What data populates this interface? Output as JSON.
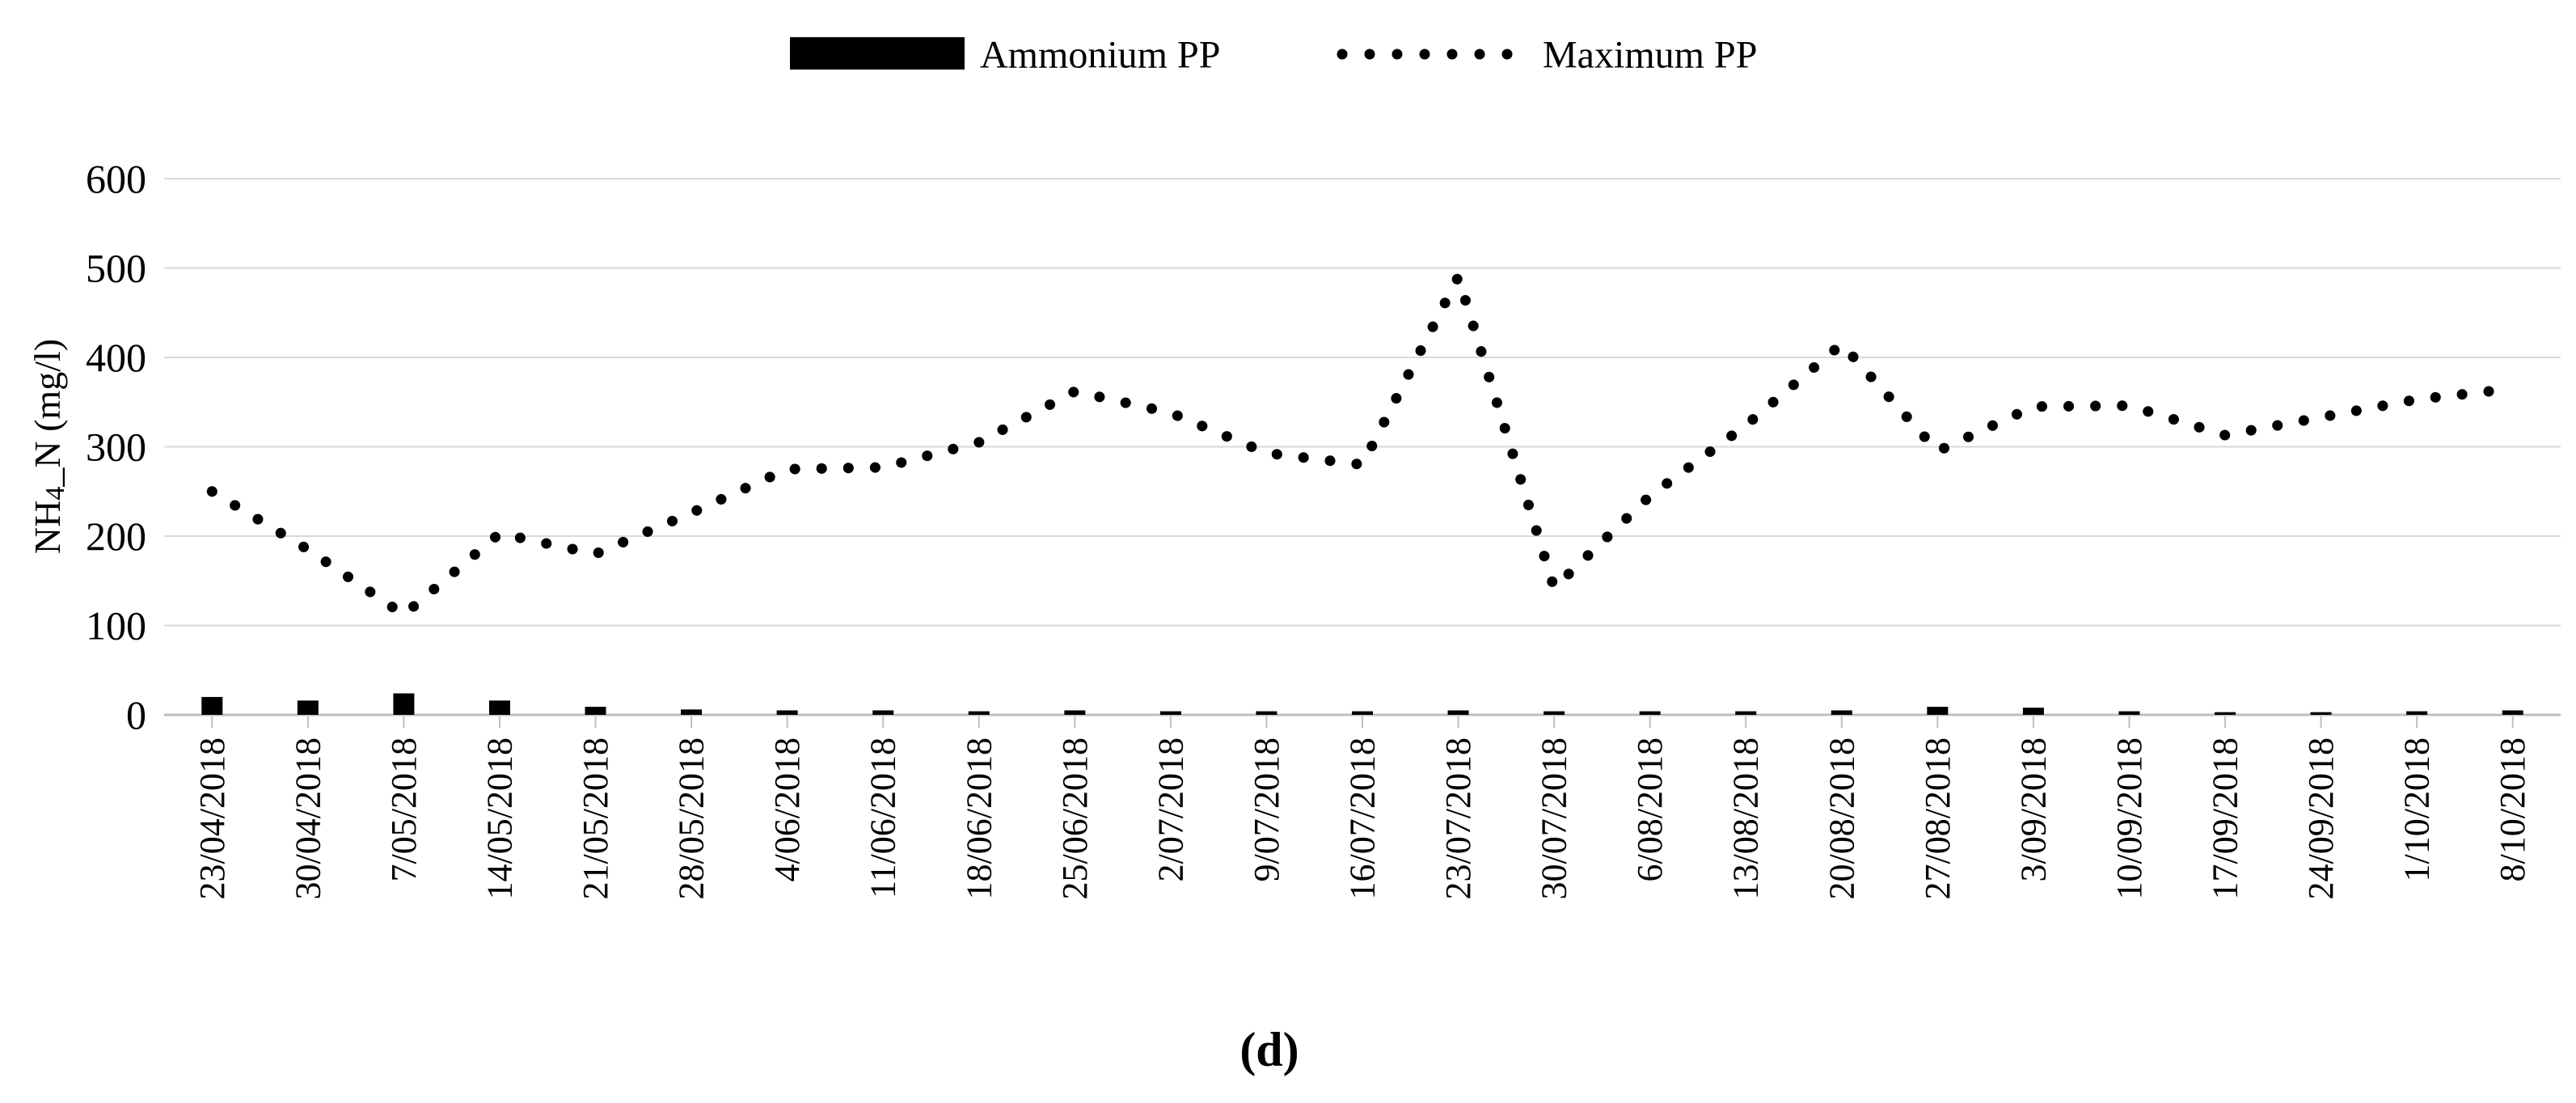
{
  "figure": {
    "caption": "(d)"
  },
  "y_axis": {
    "label_prefix": "NH",
    "label_sub": "4",
    "label_suffix": "_N (mg/l)",
    "ticks": [
      "0",
      "100",
      "200",
      "300",
      "400",
      "500",
      "600"
    ]
  },
  "legend": {
    "items": [
      {
        "label": "Ammonium PP",
        "marker": "filled-black-bar-swatch"
      },
      {
        "label": "Maximum PP",
        "marker": "black-round-dotted-line-swatch"
      }
    ]
  },
  "chart_data": {
    "type": "combo",
    "title": "",
    "xlabel": "",
    "ylabel": "NH4_N (mg/l)",
    "ylim": [
      0,
      600
    ],
    "ytick_step": 100,
    "grid": "horizontal",
    "gridline_color": "#d9d9d9",
    "axis_line_color": "#bfbfbf",
    "legend_position": "top-center",
    "categories": [
      "23/04/2018",
      "30/04/2018",
      "7/05/2018",
      "14/05/2018",
      "21/05/2018",
      "28/05/2018",
      "4/06/2018",
      "11/06/2018",
      "18/06/2018",
      "25/06/2018",
      "2/07/2018",
      "9/07/2018",
      "16/07/2018",
      "23/07/2018",
      "30/07/2018",
      "6/08/2018",
      "13/08/2018",
      "20/08/2018",
      "27/08/2018",
      "3/09/2018",
      "10/09/2018",
      "17/09/2018",
      "24/09/2018",
      "1/10/2018",
      "8/10/2018"
    ],
    "series": [
      {
        "name": "Ammonium PP",
        "type": "bar",
        "color": "#000000",
        "values": [
          20,
          16,
          24,
          16,
          9,
          6,
          5,
          5,
          4,
          5,
          4,
          4,
          4,
          5,
          4,
          4,
          4,
          5,
          9,
          8,
          4,
          3,
          3,
          4,
          5
        ]
      },
      {
        "name": "Maximum PP",
        "type": "dotted_line",
        "color": "#000000",
        "values": [
          250,
          185,
          112,
          203,
          180,
          226,
          275,
          277,
          305,
          362,
          338,
          293,
          280,
          490,
          142,
          245,
          324,
          415,
          295,
          345,
          346,
          313,
          333,
          353,
          365
        ]
      }
    ]
  }
}
